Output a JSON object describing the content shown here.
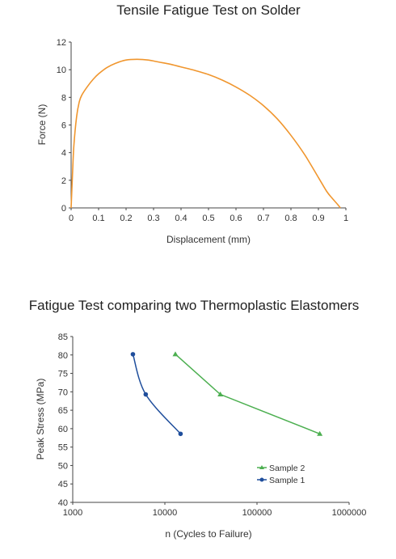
{
  "chart_data": [
    {
      "type": "line",
      "title": "Tensile Fatigue Test on Solder",
      "xlabel": "Displacement (mm)",
      "ylabel": "Force (N)",
      "xlim": [
        0,
        1
      ],
      "ylim": [
        0,
        12
      ],
      "xticks": [
        0,
        0.1,
        0.2,
        0.3,
        0.4,
        0.5,
        0.6,
        0.7,
        0.8,
        0.9,
        1
      ],
      "xtick_labels": [
        "0",
        "0.1",
        "0.2",
        "0.3",
        "0.4",
        "0.5",
        "0.6",
        "0.7",
        "0.8",
        "0.9",
        "1"
      ],
      "yticks": [
        0,
        2,
        4,
        6,
        8,
        10,
        12
      ],
      "ytick_labels": [
        "0",
        "2",
        "4",
        "6",
        "8",
        "10",
        "12"
      ],
      "grid": false,
      "series": [
        {
          "color": "#f0962e",
          "x": [
            0,
            0.005,
            0.01,
            0.02,
            0.03,
            0.04,
            0.06,
            0.08,
            0.1,
            0.13,
            0.16,
            0.2,
            0.24,
            0.28,
            0.32,
            0.36,
            0.4,
            0.45,
            0.5,
            0.55,
            0.6,
            0.65,
            0.7,
            0.75,
            0.8,
            0.85,
            0.9,
            0.93,
            0.95,
            0.97,
            0.98
          ],
          "y": [
            0,
            2.4,
            4.5,
            6.6,
            7.7,
            8.2,
            8.8,
            9.3,
            9.7,
            10.15,
            10.45,
            10.7,
            10.75,
            10.7,
            10.55,
            10.4,
            10.2,
            9.95,
            9.65,
            9.25,
            8.75,
            8.15,
            7.4,
            6.45,
            5.25,
            3.85,
            2.2,
            1.2,
            0.7,
            0.25,
            0
          ]
        }
      ]
    },
    {
      "type": "scatter",
      "title": "Fatigue Test comparing two Thermoplastic Elastomers",
      "xlabel": "n (Cycles to Failure)",
      "ylabel": "Peak Stress (MPa)",
      "xscale": "log",
      "xlim": [
        1000,
        1000000
      ],
      "ylim": [
        40,
        85
      ],
      "xticks": [
        1000,
        10000,
        100000,
        1000000
      ],
      "xtick_labels": [
        "1000",
        "10000",
        "100000",
        "1000000"
      ],
      "yticks": [
        40,
        45,
        50,
        55,
        60,
        65,
        70,
        75,
        80,
        85
      ],
      "ytick_labels": [
        "40",
        "45",
        "50",
        "55",
        "60",
        "65",
        "70",
        "75",
        "80",
        "85"
      ],
      "grid": false,
      "legend_position": "lower-right",
      "series": [
        {
          "name": "Sample 2",
          "color": "#4caf50",
          "marker": "triangle",
          "x": [
            13000,
            40000,
            480000
          ],
          "y": [
            80.2,
            69.3,
            58.6
          ]
        },
        {
          "name": "Sample 1",
          "color": "#1f4e9c",
          "marker": "circle",
          "x": [
            4500,
            6200,
            14800
          ],
          "y": [
            80.2,
            69.3,
            58.6
          ]
        }
      ]
    }
  ]
}
